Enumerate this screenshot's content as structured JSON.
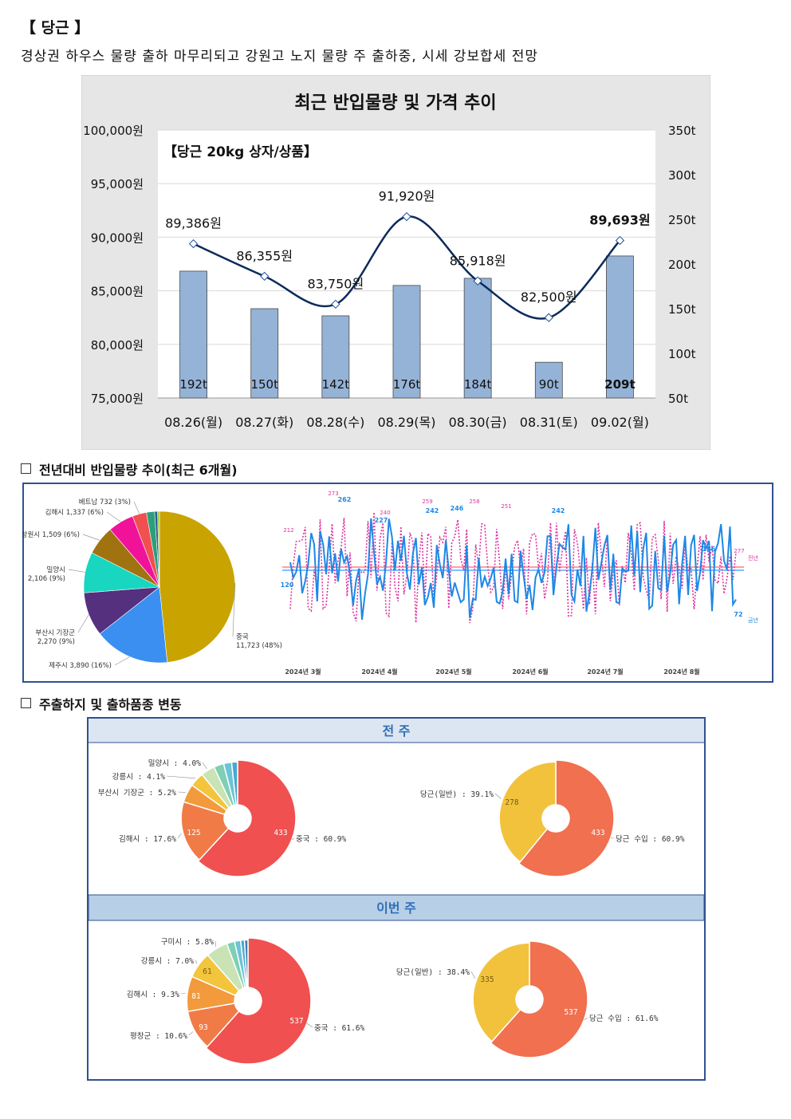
{
  "header": {
    "title": "【 당근 】",
    "subtitle": "경상권 하우스 물량 출하 마무리되고 강원고 노지 물량 주 출하중, 시세 강보합세 전망"
  },
  "sections": {
    "volume_trend": "전년대비 반입물량 추이(최근 6개월)",
    "origin_variety": "주출하지 및 출하품종 변동"
  },
  "chart_data": [
    {
      "type": "bar",
      "title": "최근 반입물량 및 가격 추이",
      "annotation": "【당근 20kg 상자/상품】",
      "categories": [
        "08.26(월)",
        "08.27(화)",
        "08.28(수)",
        "08.29(목)",
        "08.30(금)",
        "08.31(토)",
        "09.02(월)"
      ],
      "series": [
        {
          "name": "반입물량",
          "axis": "right",
          "values": [
            192,
            150,
            142,
            176,
            184,
            90,
            209
          ],
          "labels": [
            "192t",
            "150t",
            "142t",
            "176t",
            "184t",
            "90t",
            "209t"
          ],
          "color": "#95b3d7"
        },
        {
          "name": "가격",
          "type": "line",
          "axis": "left",
          "values": [
            89386,
            86355,
            83750,
            91920,
            85918,
            82500,
            89693
          ],
          "labels": [
            "89,386원",
            "86,355원",
            "83,750원",
            "91,920원",
            "85,918원",
            "82,500원",
            "89,693원"
          ],
          "color": "#0b2b5a"
        }
      ],
      "ylim_left": [
        75000,
        100000
      ],
      "yticks_left": [
        "75,000원",
        "80,000원",
        "85,000원",
        "90,000원",
        "95,000원",
        "100,000원"
      ],
      "ylim_right": [
        50,
        350
      ],
      "yticks_right": [
        "50t",
        "100t",
        "150t",
        "200t",
        "250t",
        "300t",
        "350t"
      ],
      "grid": true
    },
    {
      "type": "pie",
      "slices": [
        {
          "label": "중국",
          "value": 11723,
          "text": "11,723 (48%)",
          "color": "#c9a300"
        },
        {
          "label": "제주시",
          "value": 3890,
          "text": "3,890 (16%)",
          "color": "#3a8ff0"
        },
        {
          "label": "부산시 기장군",
          "value": 2270,
          "text": "2,270 (9%)",
          "color": "#55307f"
        },
        {
          "label": "밀양시",
          "value": 2106,
          "text": "2,106 (9%)",
          "color": "#18d6c0"
        },
        {
          "label": "창원시",
          "value": 1509,
          "text": "1,509 (6%)",
          "color": "#a07210"
        },
        {
          "label": "김해시",
          "value": 1337,
          "text": "1,337 (6%)",
          "color": "#f0139a"
        },
        {
          "label": "베트남",
          "value": 732,
          "text": "732 (3%)",
          "color": "#f05050"
        },
        {
          "label": "",
          "value": 420,
          "color": "#2aa07a"
        },
        {
          "label": "",
          "value": 150,
          "color": "#335599"
        },
        {
          "label": "",
          "value": 100,
          "color": "#99cc33"
        }
      ]
    },
    {
      "type": "line",
      "x_ticks": [
        "2024년 3월",
        "2024년 4월",
        "2024년 5월",
        "2024년 6월",
        "2024년 7월",
        "2024년 8월"
      ],
      "series": [
        {
          "name": "금년",
          "color": "#1e88e5",
          "style": "solid",
          "average_line_color": "#5aa9ff",
          "point_labels": [
            "120",
            "262",
            "227",
            "242",
            "246",
            "242",
            "186",
            "72"
          ]
        },
        {
          "name": "전년",
          "color": "#e0339f",
          "style": "dotted",
          "average_line_color": "#ff8080",
          "point_labels": [
            "212",
            "273",
            "240",
            "259",
            "258",
            "251",
            "277"
          ]
        }
      ]
    },
    {
      "type": "pie",
      "donut": true,
      "panel": "전 주",
      "group": "주출하지",
      "slices": [
        {
          "label": "중국",
          "pct": "60.9%",
          "value": 433,
          "color": "#f05050"
        },
        {
          "label": "김해시",
          "pct": "17.6%",
          "value": 125,
          "color": "#f07b47"
        },
        {
          "label": "부산시 기장군",
          "pct": "5.2%",
          "value": 37,
          "color": "#f29a3c"
        },
        {
          "label": "강릉시",
          "pct": "4.1%",
          "value": 29,
          "color": "#f2c53d"
        },
        {
          "label": "밀양시",
          "pct": "4.0%",
          "value": 28,
          "color": "#c9e3b5"
        },
        {
          "label": "",
          "value": 20,
          "color": "#7ecfb3"
        },
        {
          "label": "",
          "value": 16,
          "color": "#6cc3d6"
        },
        {
          "label": "",
          "value": 12,
          "color": "#4aa8d0"
        }
      ]
    },
    {
      "type": "pie",
      "donut": true,
      "panel": "전 주",
      "group": "출하품종",
      "slices": [
        {
          "label": "당근 수입",
          "pct": "60.9%",
          "value": 433,
          "color": "#f07050"
        },
        {
          "label": "당근(일반)",
          "pct": "39.1%",
          "value": 278,
          "color": "#f2c23d"
        }
      ]
    },
    {
      "type": "pie",
      "donut": true,
      "panel": "이번 주",
      "group": "주출하지",
      "slices": [
        {
          "label": "중국",
          "pct": "61.6%",
          "value": 537,
          "color": "#f05050"
        },
        {
          "label": "평창군",
          "pct": "10.6%",
          "value": 93,
          "color": "#f07b47"
        },
        {
          "label": "김해시",
          "pct": "9.3%",
          "value": 81,
          "color": "#f29a3c"
        },
        {
          "label": "강릉시",
          "pct": "7.0%",
          "value": 61,
          "color": "#f2c53d"
        },
        {
          "label": "구미시",
          "pct": "5.8%",
          "value": 51,
          "color": "#c9e3b5"
        },
        {
          "label": "",
          "value": 18,
          "color": "#7ecfb3"
        },
        {
          "label": "",
          "value": 14,
          "color": "#6cc3d6"
        },
        {
          "label": "",
          "value": 9,
          "color": "#4aa8d0"
        },
        {
          "label": "",
          "value": 8,
          "color": "#3a7fb0"
        }
      ]
    },
    {
      "type": "pie",
      "donut": true,
      "panel": "이번 주",
      "group": "출하품종",
      "slices": [
        {
          "label": "당근 수입",
          "pct": "61.6%",
          "value": 537,
          "color": "#f07050"
        },
        {
          "label": "당근(일반)",
          "pct": "38.4%",
          "value": 335,
          "color": "#f2c23d"
        }
      ]
    }
  ],
  "panels": {
    "prev_week": "전 주",
    "this_week": "이번 주"
  }
}
